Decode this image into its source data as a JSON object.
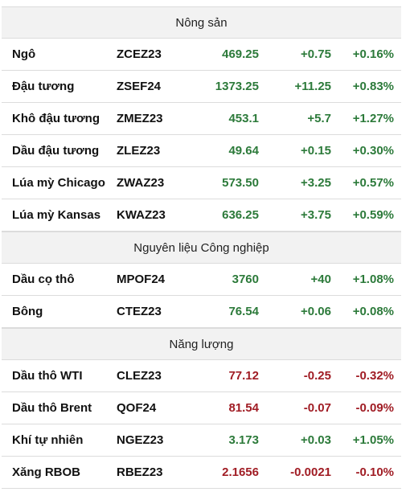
{
  "colors": {
    "up": "#2c7a3a",
    "down": "#a01c24",
    "header_bg": "#f2f2f2",
    "border": "#dcdcdc"
  },
  "sections": [
    {
      "title": "Nông sản",
      "rows": [
        {
          "name": "Ngô",
          "code": "ZCEZ23",
          "price": "469.25",
          "change": "+0.75",
          "pct": "+0.16%",
          "dir": "up"
        },
        {
          "name": "Đậu tương",
          "code": "ZSEF24",
          "price": "1373.25",
          "change": "+11.25",
          "pct": "+0.83%",
          "dir": "up"
        },
        {
          "name": "Khô đậu tương",
          "code": "ZMEZ23",
          "price": "453.1",
          "change": "+5.7",
          "pct": "+1.27%",
          "dir": "up"
        },
        {
          "name": "Dầu đậu tương",
          "code": "ZLEZ23",
          "price": "49.64",
          "change": "+0.15",
          "pct": "+0.30%",
          "dir": "up"
        },
        {
          "name": "Lúa mỳ Chicago",
          "code": "ZWAZ23",
          "price": "573.50",
          "change": "+3.25",
          "pct": "+0.57%",
          "dir": "up"
        },
        {
          "name": "Lúa mỳ Kansas",
          "code": "KWAZ23",
          "price": "636.25",
          "change": "+3.75",
          "pct": "+0.59%",
          "dir": "up"
        }
      ]
    },
    {
      "title": "Nguyên liệu Công nghiệp",
      "rows": [
        {
          "name": "Dầu cọ thô",
          "code": "MPOF24",
          "price": "3760",
          "change": "+40",
          "pct": "+1.08%",
          "dir": "up"
        },
        {
          "name": "Bông",
          "code": "CTEZ23",
          "price": "76.54",
          "change": "+0.06",
          "pct": "+0.08%",
          "dir": "up"
        }
      ]
    },
    {
      "title": "Năng lượng",
      "rows": [
        {
          "name": "Dầu thô WTI",
          "code": "CLEZ23",
          "price": "77.12",
          "change": "-0.25",
          "pct": "-0.32%",
          "dir": "down"
        },
        {
          "name": "Dầu thô Brent",
          "code": "QOF24",
          "price": "81.54",
          "change": "-0.07",
          "pct": "-0.09%",
          "dir": "down"
        },
        {
          "name": "Khí tự nhiên",
          "code": "NGEZ23",
          "price": "3.173",
          "change": "+0.03",
          "pct": "+1.05%",
          "dir": "up"
        },
        {
          "name": "Xăng RBOB",
          "code": "RBEZ23",
          "price": "2.1656",
          "change": "-0.0021",
          "pct": "-0.10%",
          "dir": "down"
        }
      ]
    }
  ]
}
